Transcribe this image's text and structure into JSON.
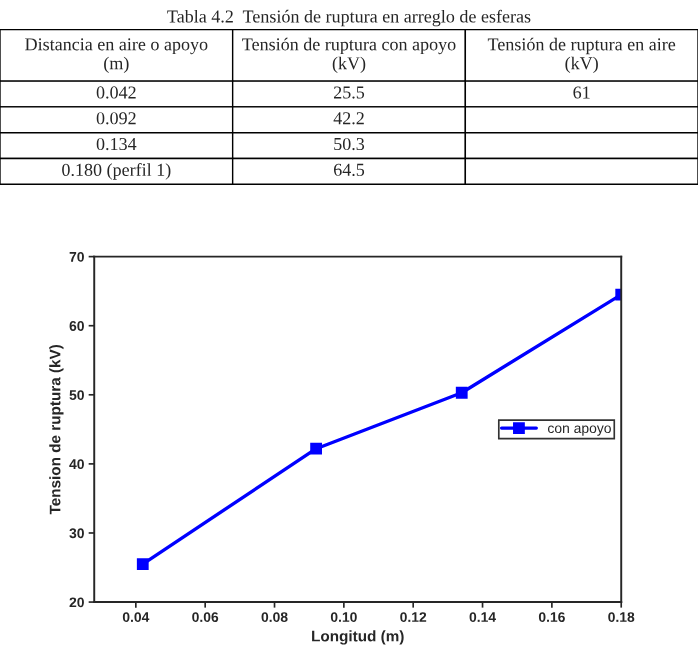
{
  "chart_data": {
    "type": "line",
    "title": "Tabla 4.2  Tensión de ruptura en arreglo de esferas",
    "annotations": [
      "Distancia en aire o apoyo\n(m)",
      "Tensión de ruptura con apoyo\n(kV)",
      "Tensión de ruptura en aire\n(kV)",
      "0.042",
      "25.5",
      "61",
      "0.092",
      "42.2",
      null,
      "0.134",
      "50.3",
      null,
      "0.180 (perfil 1)",
      "64.5",
      null
    ],
    "x": [
      0.042,
      0.092,
      0.134,
      0.18
    ],
    "series": [
      {
        "name": "con apoyo",
        "color": "#0000ff",
        "values": [
          25.5,
          42.2,
          50.3,
          64.5
        ]
      }
    ],
    "xlabel": "Longitud (m)",
    "ylabel": "Tension de ruptura (kV)",
    "xlim": [
      0.028,
      0.18
    ],
    "xticks": [
      {
        "value": 0.04,
        "label": "0.04"
      },
      {
        "value": 0.06,
        "label": "0.06"
      },
      {
        "value": 0.08,
        "label": "0.08"
      },
      {
        "value": 0.1,
        "label": "0.10"
      },
      {
        "value": 0.12,
        "label": "0.12"
      },
      {
        "value": 0.14,
        "label": "0.14"
      },
      {
        "value": 0.16,
        "label": "0.16"
      },
      {
        "value": 0.18,
        "label": "0.18"
      }
    ],
    "ylim": [
      20,
      70
    ],
    "yticks": [
      20,
      30,
      40,
      50,
      60,
      70
    ],
    "legend": "center right",
    "marker": "square",
    "line_style": "solid",
    "grid": false
  }
}
